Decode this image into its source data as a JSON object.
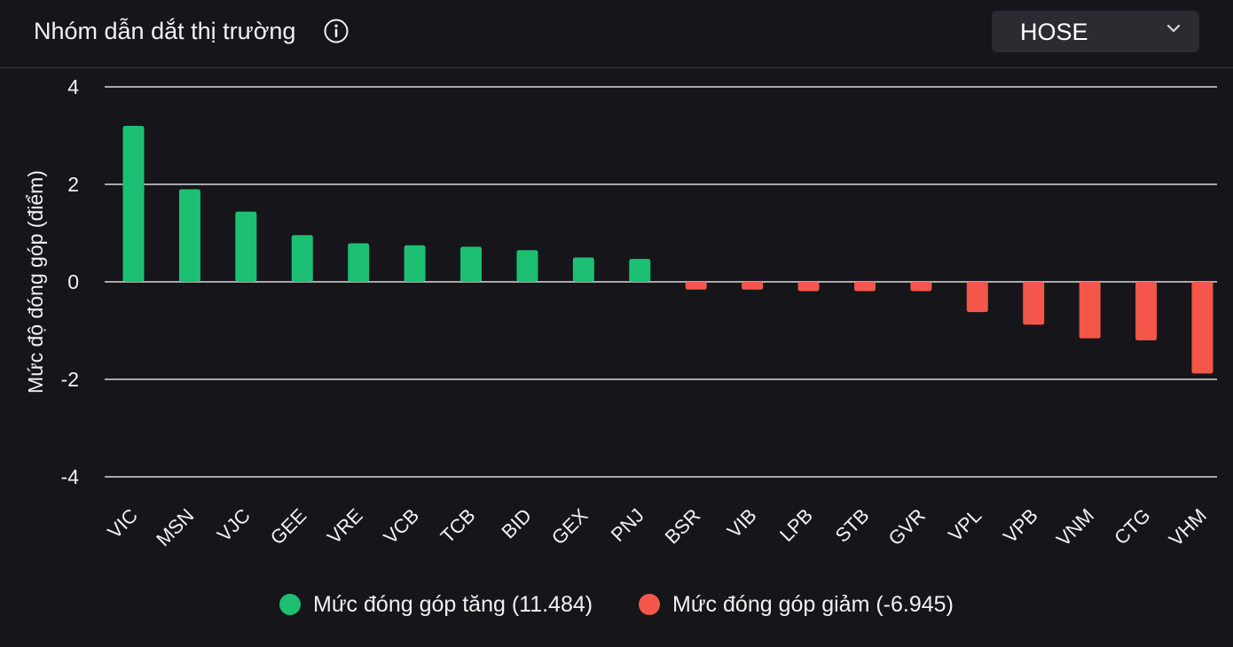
{
  "header": {
    "title": "Nhóm dẫn dắt thị trường",
    "exchange_selected": "HOSE"
  },
  "icons": {
    "info": "info-icon",
    "dropdown": "chevron-down-icon"
  },
  "colors": {
    "positive": "#1dbf73",
    "negative": "#f4564a",
    "gridline": "#ffffff",
    "background": "#16151a"
  },
  "legend": {
    "increase_label": "Mức đóng góp tăng (11.484)",
    "decrease_label": "Mức đóng góp giảm (-6.945)"
  },
  "chart_data": {
    "type": "bar",
    "ylabel": "Mức độ đóng góp (điểm)",
    "ylim": [
      -4,
      4
    ],
    "yticks": [
      4,
      2,
      0,
      -2,
      -4
    ],
    "grid": true,
    "legend_position": "bottom",
    "categories": [
      "VIC",
      "MSN",
      "VJC",
      "GEE",
      "VRE",
      "VCB",
      "TCB",
      "BID",
      "GEX",
      "PNJ",
      "BSR",
      "VIB",
      "LPB",
      "STB",
      "GVR",
      "VPL",
      "VPB",
      "VNM",
      "CTG",
      "VHM"
    ],
    "values": [
      3.2,
      1.9,
      1.44,
      0.96,
      0.79,
      0.75,
      0.72,
      0.65,
      0.5,
      0.47,
      -0.16,
      -0.16,
      -0.19,
      -0.19,
      -0.19,
      -0.62,
      -0.88,
      -1.16,
      -1.2,
      -1.88
    ]
  }
}
